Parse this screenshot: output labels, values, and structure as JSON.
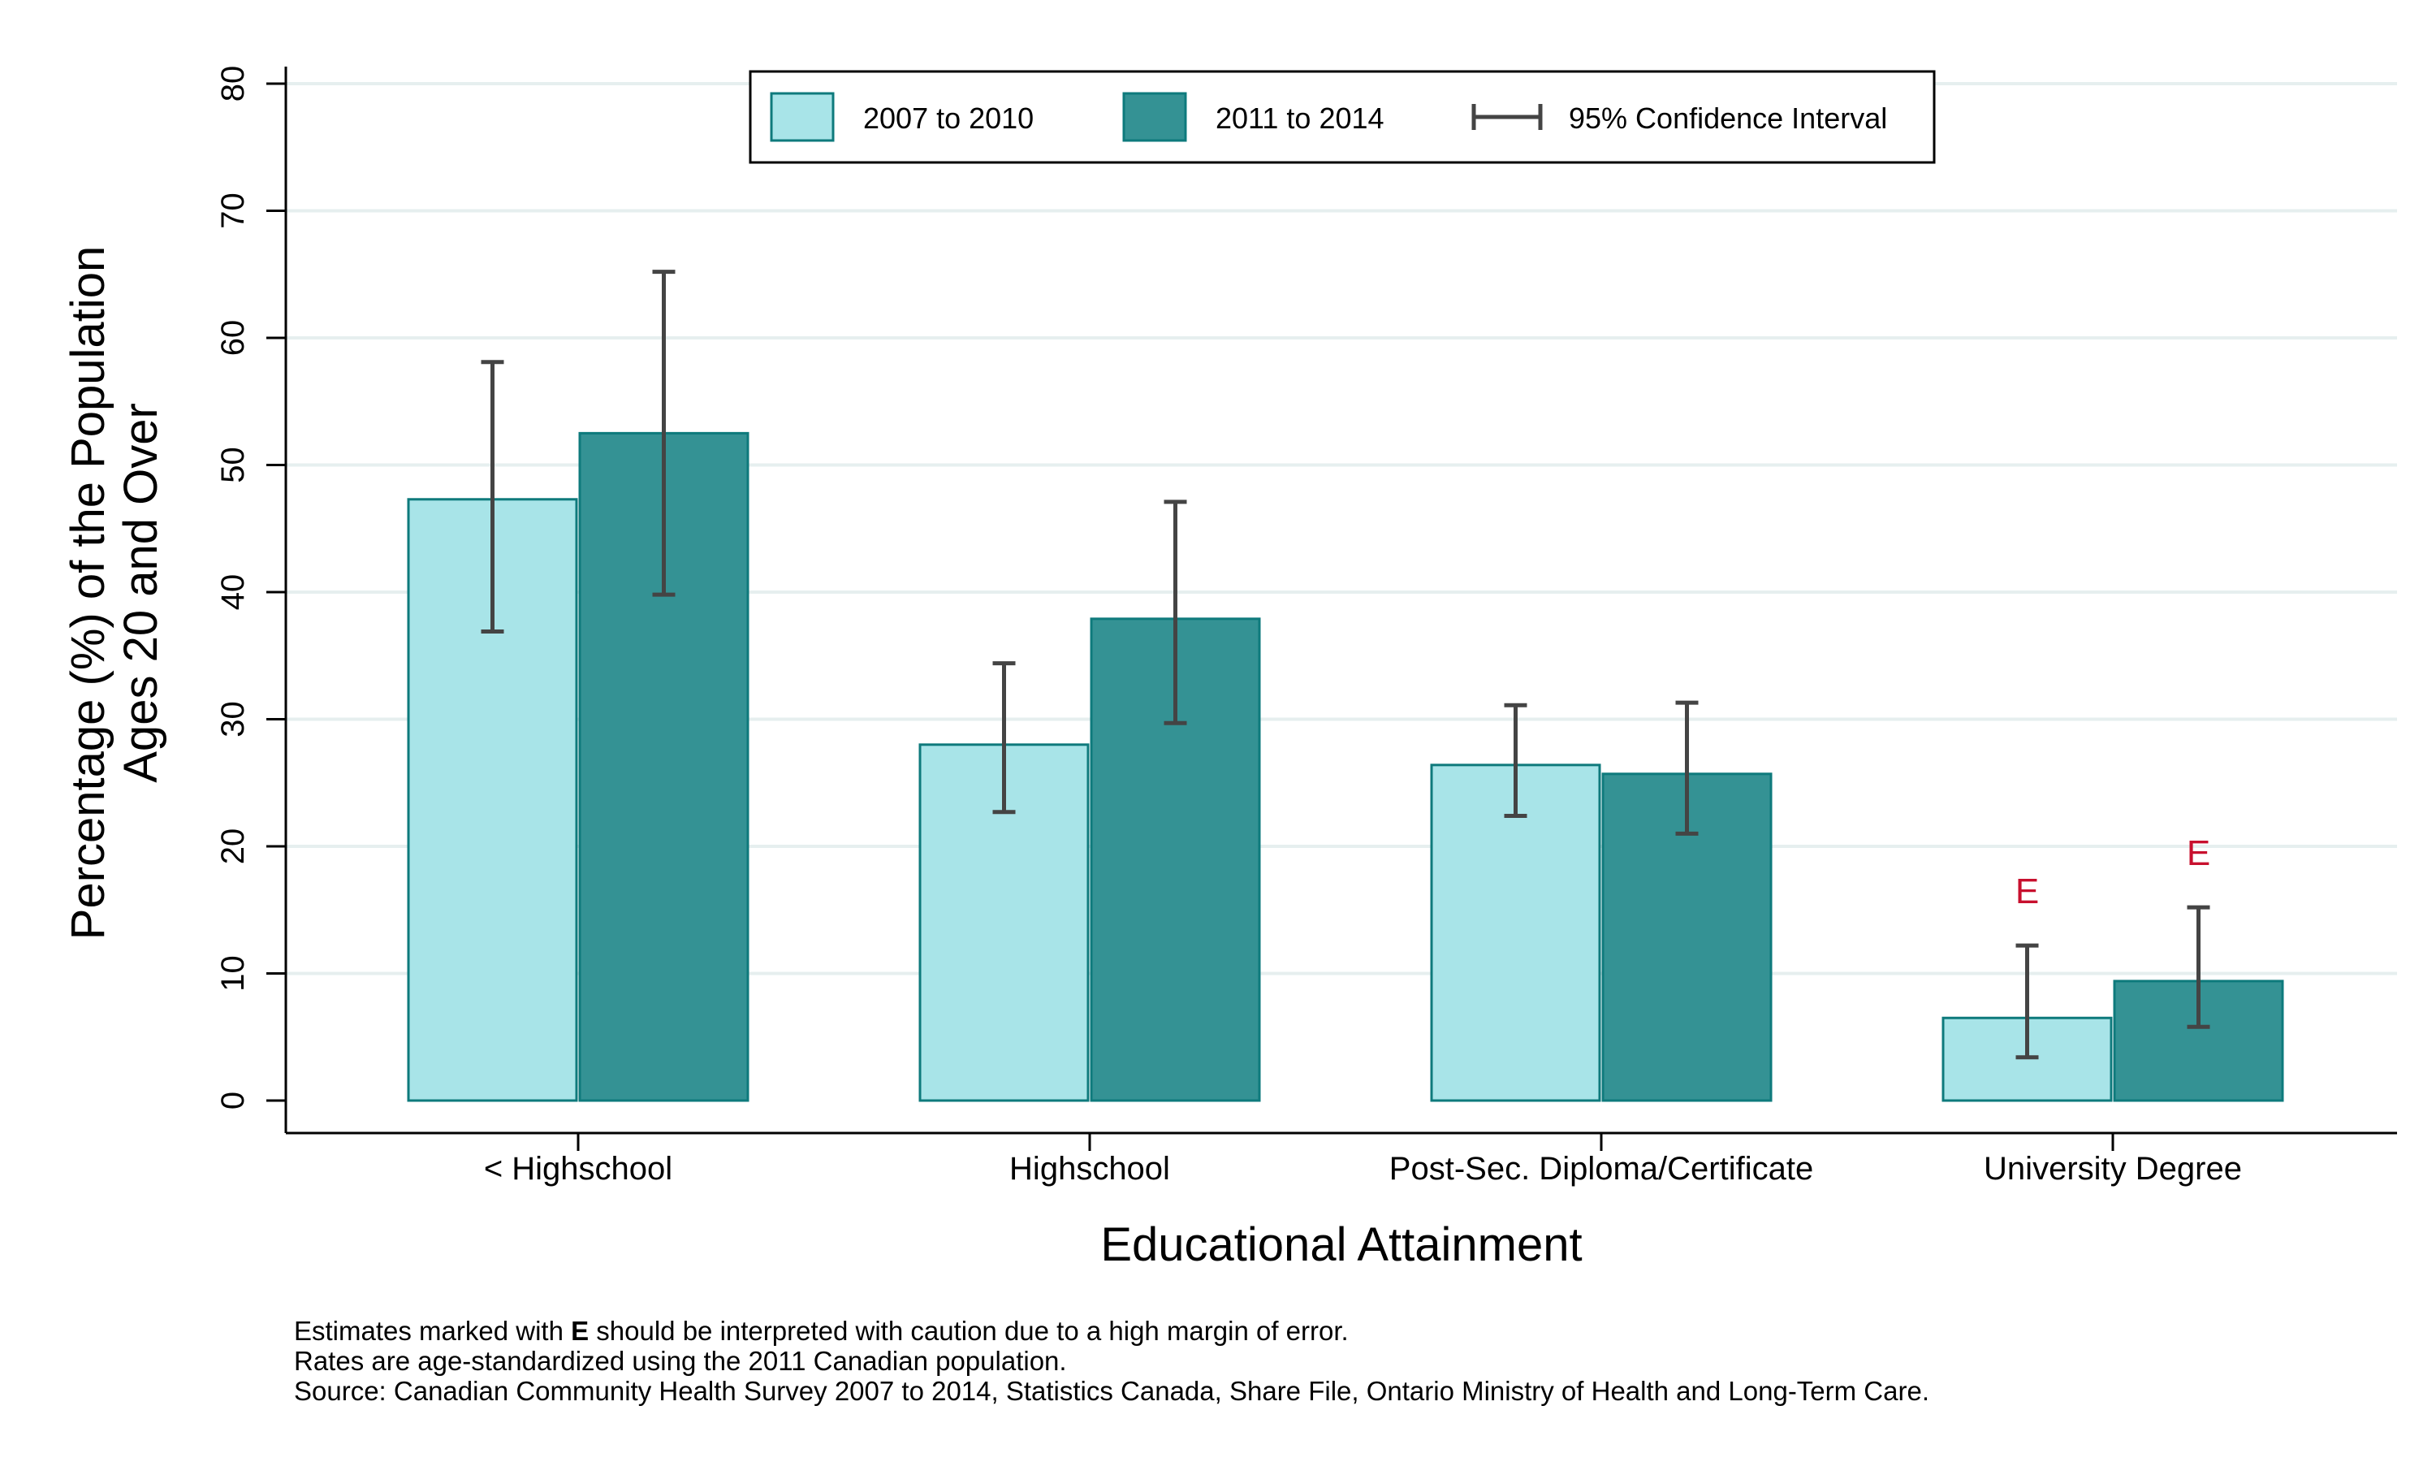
{
  "chart_data": {
    "type": "bar",
    "xlabel": "Educational Attainment",
    "ylabel_line1": "Percentage (%) of the Population",
    "ylabel_line2": "Ages 20 and Over",
    "ylim": [
      0,
      80
    ],
    "yticks": [
      0,
      10,
      20,
      30,
      40,
      50,
      60,
      70,
      80
    ],
    "grid": true,
    "legend_position": "top-center",
    "categories": [
      "< Highschool",
      "Highschool",
      "Post-Sec. Diploma/Certificate",
      "University Degree"
    ],
    "series": [
      {
        "name": "2007 to 2010",
        "color": "#a8e4e8",
        "values": [
          47.3,
          28.0,
          26.4,
          6.5
        ],
        "ci_low": [
          36.9,
          22.7,
          22.4,
          3.4
        ],
        "ci_high": [
          58.1,
          34.4,
          31.1,
          12.2
        ],
        "flags": [
          "",
          "",
          "",
          "E"
        ]
      },
      {
        "name": "2011 to 2014",
        "color": "#349294",
        "values": [
          52.5,
          37.9,
          25.7,
          9.4
        ],
        "ci_low": [
          39.8,
          29.7,
          21.0,
          5.8
        ],
        "ci_high": [
          65.2,
          47.1,
          31.3,
          15.2
        ],
        "flags": [
          "",
          "",
          "",
          "E"
        ]
      }
    ],
    "ci_legend_label": "95% Confidence Interval",
    "flag_color": "#c8102e",
    "bar_edge_color": "#0e7a7c",
    "errorbar_color": "#444444"
  },
  "notes": {
    "line1_pre": "Estimates marked with ",
    "line1_bold": "E",
    "line1_post": " should be interpreted with caution due to a high margin of error.",
    "line2": "Rates are age-standardized using the 2011 Canadian population.",
    "line3": "Source: Canadian Community Health Survey 2007 to 2014, Statistics Canada, Share File, Ontario Ministry of Health and Long-Term Care."
  }
}
